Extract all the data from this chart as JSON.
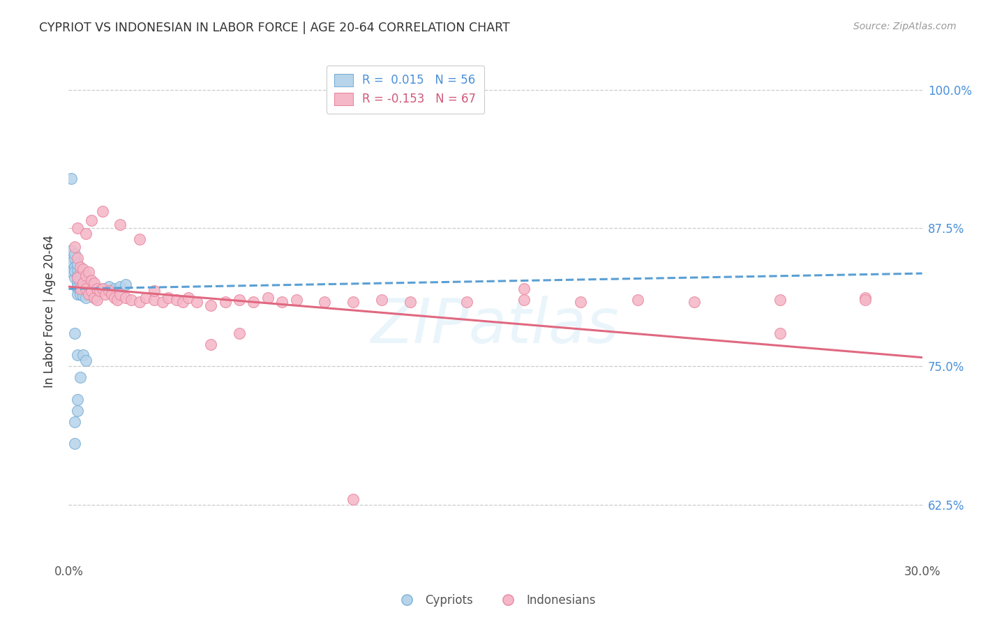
{
  "title": "CYPRIOT VS INDONESIAN IN LABOR FORCE | AGE 20-64 CORRELATION CHART",
  "source": "Source: ZipAtlas.com",
  "ylabel": "In Labor Force | Age 20-64",
  "ytick_labels": [
    "62.5%",
    "75.0%",
    "87.5%",
    "100.0%"
  ],
  "ytick_values": [
    0.625,
    0.75,
    0.875,
    1.0
  ],
  "xlim": [
    0.0,
    0.3
  ],
  "ylim": [
    0.575,
    1.025
  ],
  "color_blue_fill": "#b8d4ea",
  "color_pink_fill": "#f5b8c8",
  "color_blue_edge": "#7ab0d8",
  "color_pink_edge": "#e888a0",
  "color_blue_line": "#5a9fd4",
  "color_pink_line": "#e06880",
  "color_right_axis": "#4a90d9",
  "color_title": "#333333",
  "color_source": "#999999",
  "color_grid": "#cccccc",
  "color_watermark": "#d8edf8",
  "watermark": "ZIPatlas",
  "legend_blue": "R =  0.015   N = 56",
  "legend_pink": "R = -0.153   N = 67",
  "blue_trendline": [
    0.0,
    0.3,
    0.82,
    0.834
  ],
  "pink_trendline": [
    0.0,
    0.3,
    0.822,
    0.758
  ],
  "blue_x": [
    0.001,
    0.001,
    0.001,
    0.002,
    0.002,
    0.002,
    0.002,
    0.002,
    0.002,
    0.003,
    0.003,
    0.003,
    0.003,
    0.003,
    0.003,
    0.003,
    0.003,
    0.004,
    0.004,
    0.004,
    0.004,
    0.004,
    0.004,
    0.005,
    0.005,
    0.005,
    0.005,
    0.005,
    0.006,
    0.006,
    0.006,
    0.006,
    0.007,
    0.007,
    0.007,
    0.008,
    0.008,
    0.009,
    0.009,
    0.01,
    0.01,
    0.012,
    0.014,
    0.016,
    0.018,
    0.02,
    0.001,
    0.002,
    0.003,
    0.004,
    0.002,
    0.002,
    0.003,
    0.003,
    0.005,
    0.006
  ],
  "blue_y": [
    0.835,
    0.845,
    0.855,
    0.83,
    0.84,
    0.848,
    0.852,
    0.84,
    0.836,
    0.825,
    0.832,
    0.838,
    0.842,
    0.826,
    0.82,
    0.815,
    0.822,
    0.82,
    0.825,
    0.83,
    0.835,
    0.818,
    0.815,
    0.82,
    0.825,
    0.822,
    0.818,
    0.814,
    0.82,
    0.822,
    0.818,
    0.812,
    0.818,
    0.82,
    0.815,
    0.818,
    0.815,
    0.816,
    0.812,
    0.818,
    0.814,
    0.82,
    0.822,
    0.82,
    0.822,
    0.824,
    0.92,
    0.78,
    0.76,
    0.74,
    0.7,
    0.68,
    0.72,
    0.71,
    0.76,
    0.755
  ],
  "pink_x": [
    0.002,
    0.003,
    0.003,
    0.004,
    0.004,
    0.005,
    0.005,
    0.006,
    0.006,
    0.007,
    0.007,
    0.008,
    0.008,
    0.009,
    0.009,
    0.01,
    0.01,
    0.011,
    0.012,
    0.013,
    0.014,
    0.015,
    0.016,
    0.017,
    0.018,
    0.02,
    0.022,
    0.025,
    0.027,
    0.03,
    0.033,
    0.035,
    0.038,
    0.04,
    0.042,
    0.045,
    0.05,
    0.055,
    0.06,
    0.065,
    0.07,
    0.075,
    0.08,
    0.09,
    0.1,
    0.11,
    0.12,
    0.14,
    0.16,
    0.18,
    0.2,
    0.22,
    0.25,
    0.28,
    0.003,
    0.006,
    0.008,
    0.012,
    0.018,
    0.025,
    0.03,
    0.05,
    0.06,
    0.16,
    0.25,
    0.28,
    0.1
  ],
  "pink_y": [
    0.858,
    0.848,
    0.83,
    0.84,
    0.82,
    0.838,
    0.825,
    0.832,
    0.82,
    0.835,
    0.815,
    0.828,
    0.818,
    0.825,
    0.812,
    0.82,
    0.81,
    0.818,
    0.82,
    0.815,
    0.818,
    0.815,
    0.812,
    0.81,
    0.815,
    0.812,
    0.81,
    0.808,
    0.812,
    0.81,
    0.808,
    0.812,
    0.81,
    0.808,
    0.812,
    0.808,
    0.805,
    0.808,
    0.81,
    0.808,
    0.812,
    0.808,
    0.81,
    0.808,
    0.808,
    0.81,
    0.808,
    0.808,
    0.81,
    0.808,
    0.81,
    0.808,
    0.81,
    0.812,
    0.875,
    0.87,
    0.882,
    0.89,
    0.878,
    0.865,
    0.818,
    0.77,
    0.78,
    0.82,
    0.78,
    0.81,
    0.63
  ]
}
